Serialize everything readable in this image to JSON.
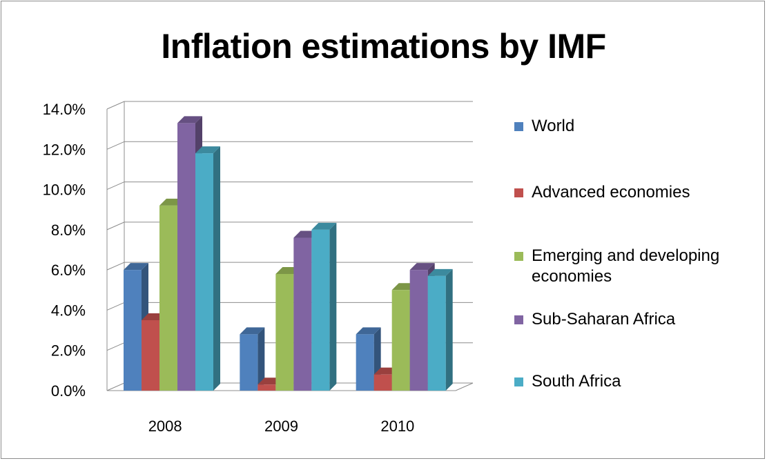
{
  "chart_data": {
    "type": "bar",
    "title": "Inflation estimations by IMF",
    "categories": [
      "2008",
      "2009",
      "2010"
    ],
    "ylim": [
      0,
      14
    ],
    "yticks": [
      "0.0%",
      "2.0%",
      "4.0%",
      "6.0%",
      "8.0%",
      "10.0%",
      "12.0%",
      "14.0%"
    ],
    "grid": true,
    "legend_position": "right",
    "series": [
      {
        "name": "World",
        "color": "#4f81bd",
        "values": [
          6.0,
          2.8,
          2.8
        ]
      },
      {
        "name": "Advanced economies",
        "color": "#c0504d",
        "values": [
          3.5,
          0.3,
          0.8
        ]
      },
      {
        "name": "Emerging and developing economies",
        "color": "#9bbb59",
        "values": [
          9.2,
          5.8,
          5.0
        ]
      },
      {
        "name": "Sub-Saharan Africa",
        "color": "#8064a2",
        "values": [
          13.3,
          7.6,
          6.0
        ]
      },
      {
        "name": "South Africa",
        "color": "#4bacc6",
        "values": [
          11.8,
          8.0,
          5.7
        ]
      }
    ]
  }
}
